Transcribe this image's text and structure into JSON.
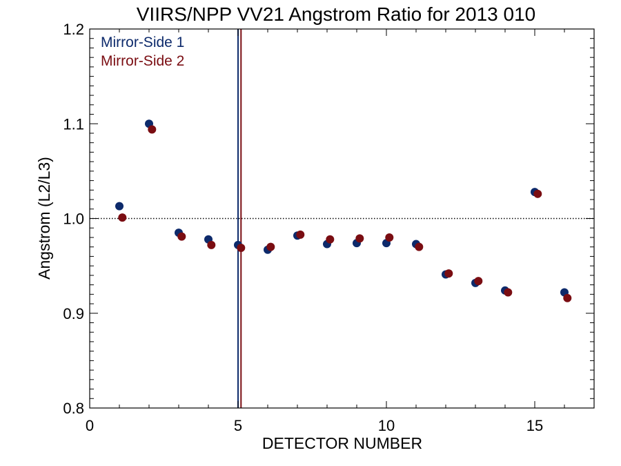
{
  "chart_data": {
    "type": "scatter",
    "title": "VIIRS/NPP VV21 Angstrom Ratio for 2013 010",
    "xlabel": "DETECTOR NUMBER",
    "ylabel": "Angstrom (L2/L3)",
    "xlim": [
      0,
      17
    ],
    "ylim": [
      0.8,
      1.2
    ],
    "x_ticks": [
      0,
      5,
      10,
      15
    ],
    "x_tick_labels": [
      "0",
      "5",
      "10",
      "15"
    ],
    "y_ticks": [
      0.8,
      0.9,
      1.0,
      1.1,
      1.2
    ],
    "y_tick_labels": [
      "0.8",
      "0.9",
      "1.0",
      "1.1",
      "1.2"
    ],
    "reference_line_y": 1.0,
    "vertical_lines": [
      {
        "x": 5.0,
        "color": "#0d2a6b"
      },
      {
        "x": 5.1,
        "color": "#7a0d12"
      }
    ],
    "legend_position": "top-left",
    "series": [
      {
        "name": "Mirror-Side 1",
        "color": "#0d2a6b",
        "x": [
          1,
          2,
          3,
          4,
          5,
          6,
          7,
          8,
          9,
          10,
          11,
          12,
          13,
          14,
          15,
          16
        ],
        "y": [
          1.013,
          1.1,
          0.985,
          0.978,
          0.972,
          0.967,
          0.982,
          0.973,
          0.974,
          0.974,
          0.973,
          0.941,
          0.932,
          0.924,
          1.028,
          0.922
        ]
      },
      {
        "name": "Mirror-Side 2",
        "color": "#7a0d12",
        "x": [
          1.1,
          2.1,
          3.1,
          4.1,
          5.1,
          6.1,
          7.1,
          8.1,
          9.1,
          10.1,
          11.1,
          12.1,
          13.1,
          14.1,
          15.1,
          16.1
        ],
        "y": [
          1.001,
          1.094,
          0.981,
          0.972,
          0.969,
          0.97,
          0.983,
          0.978,
          0.979,
          0.98,
          0.97,
          0.942,
          0.934,
          0.922,
          1.026,
          0.916
        ]
      }
    ]
  }
}
